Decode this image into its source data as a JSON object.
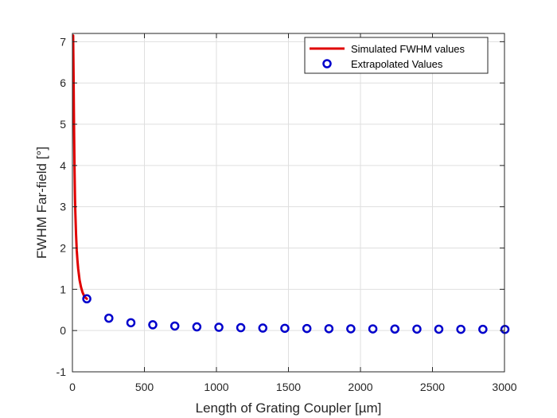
{
  "chart_data": {
    "type": "line",
    "xlabel": "Length of Grating Coupler [µm]",
    "ylabel": "FWHM Far-field [°]",
    "xlim": [
      0,
      3000
    ],
    "ylim": [
      -1,
      7.2
    ],
    "xticks": [
      0,
      500,
      1000,
      1500,
      2000,
      2500,
      3000
    ],
    "xtick_labels": [
      "0",
      "500",
      "1000",
      "1500",
      "2000",
      "2500",
      "3000"
    ],
    "yticks": [
      -1,
      0,
      1,
      2,
      3,
      4,
      5,
      6,
      7
    ],
    "ytick_labels": [
      "-1",
      "0",
      "1",
      "2",
      "3",
      "4",
      "5",
      "6",
      "7"
    ],
    "grid": true,
    "legend_position": "top-right",
    "series": [
      {
        "name": "Simulated FWHM values",
        "style": "line",
        "color": "#e00000",
        "x": [
          5,
          8,
          10,
          12,
          15,
          18,
          20,
          25,
          30,
          35,
          40,
          50,
          60,
          70,
          80,
          90,
          100
        ],
        "y": [
          7.15,
          6.2,
          5.4,
          4.7,
          3.85,
          3.2,
          2.9,
          2.35,
          1.95,
          1.7,
          1.5,
          1.22,
          1.05,
          0.93,
          0.85,
          0.8,
          0.77
        ]
      },
      {
        "name": "Extrapolated Values",
        "style": "marker-circle",
        "color": "#0000cc",
        "x": [
          100,
          253,
          406,
          558,
          711,
          864,
          1017,
          1169,
          1322,
          1475,
          1628,
          1781,
          1933,
          2086,
          2239,
          2392,
          2544,
          2697,
          2850,
          3003
        ],
        "y": [
          0.77,
          0.3,
          0.19,
          0.14,
          0.11,
          0.09,
          0.08,
          0.07,
          0.06,
          0.055,
          0.05,
          0.045,
          0.042,
          0.04,
          0.037,
          0.035,
          0.033,
          0.031,
          0.03,
          0.028
        ]
      }
    ]
  }
}
